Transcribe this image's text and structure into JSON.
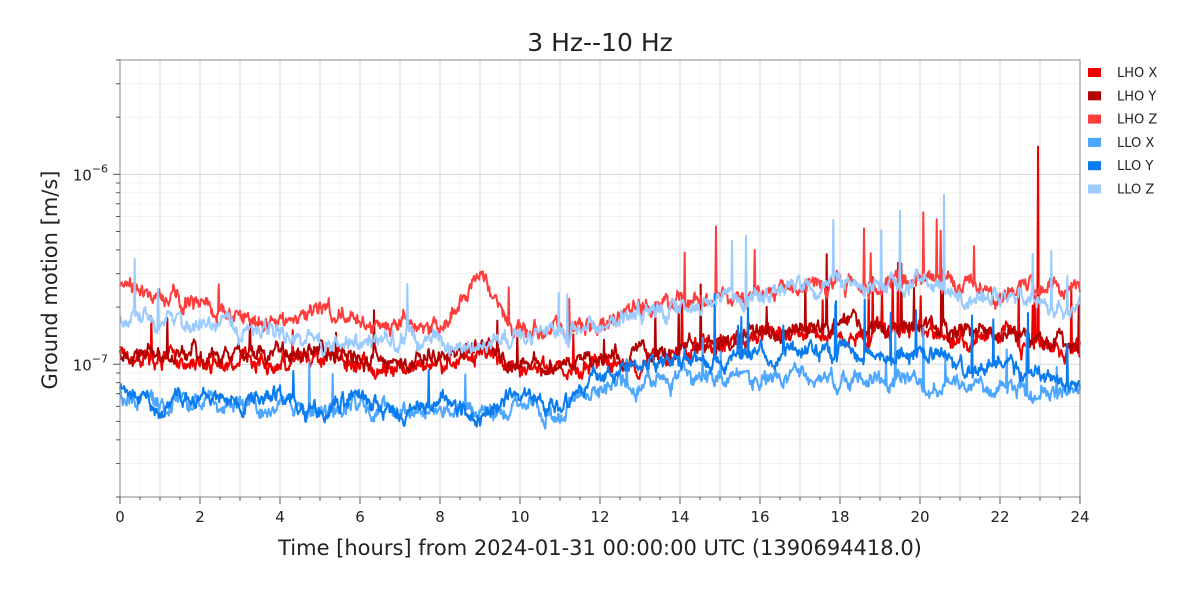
{
  "chart_data": {
    "type": "line",
    "title": "3 Hz--10 Hz",
    "xlabel": "Time [hours] from 2024-01-31 00:00:00 UTC (1390694418.0)",
    "ylabel": "Ground motion [m/s]",
    "xlim": [
      0,
      24
    ],
    "ylim": [
      2e-08,
      4e-06
    ],
    "yscale": "log",
    "grid": true,
    "legend_position": "right",
    "x_ticks": [
      "0",
      "2",
      "4",
      "6",
      "8",
      "10",
      "12",
      "14",
      "16",
      "18",
      "20",
      "22",
      "24"
    ],
    "y_ticks": [
      {
        "value": 1e-07,
        "base": "10",
        "exp": "−7"
      },
      {
        "value": 1e-06,
        "base": "10",
        "exp": "−6"
      }
    ],
    "x": [
      0,
      1,
      2,
      3,
      4,
      5,
      6,
      7,
      8,
      9,
      10,
      11,
      12,
      13,
      14,
      15,
      16,
      17,
      18,
      19,
      20,
      21,
      22,
      23,
      24
    ],
    "series": [
      {
        "name": "LHO X",
        "color": "#ee0000",
        "values": [
          1.25e-07,
          1.05e-07,
          1e-07,
          1.05e-07,
          1e-07,
          1.1e-07,
          1e-07,
          9.5e-08,
          1e-07,
          1.2e-07,
          9e-08,
          9.5e-08,
          1e-07,
          1.05e-07,
          1.2e-07,
          1.3e-07,
          1.4e-07,
          1.5e-07,
          1.5e-07,
          1.4e-07,
          1.5e-07,
          1.4e-07,
          1.4e-07,
          1.3e-07,
          1.2e-07
        ]
      },
      {
        "name": "LHO Y",
        "color": "#b30000",
        "values": [
          1.2e-07,
          1.15e-07,
          1.1e-07,
          1.15e-07,
          1.1e-07,
          1.2e-07,
          1.05e-07,
          1.05e-07,
          1.1e-07,
          1.3e-07,
          1e-07,
          1e-07,
          1.05e-07,
          1.1e-07,
          1.25e-07,
          1.35e-07,
          1.45e-07,
          1.6e-07,
          1.6e-07,
          1.5e-07,
          1.6e-07,
          1.5e-07,
          1.45e-07,
          1.35e-07,
          1.2e-07
        ]
      },
      {
        "name": "LHO Z",
        "color": "#ff3d3d",
        "values": [
          2.6e-07,
          2.3e-07,
          2.1e-07,
          1.8e-07,
          1.7e-07,
          1.9e-07,
          1.6e-07,
          1.7e-07,
          1.6e-07,
          2.8e-07,
          1.5e-07,
          1.6e-07,
          1.7e-07,
          1.9e-07,
          2.3e-07,
          2.2e-07,
          2.3e-07,
          2.6e-07,
          2.7e-07,
          2.5e-07,
          2.7e-07,
          2.6e-07,
          2.4e-07,
          2.5e-07,
          2.5e-07
        ]
      },
      {
        "name": "LLO X",
        "color": "#4da6ff",
        "values": [
          7e-08,
          6e-08,
          6.5e-08,
          6e-08,
          6e-08,
          5.5e-08,
          6e-08,
          5.5e-08,
          6e-08,
          5.5e-08,
          6e-08,
          5.5e-08,
          7.5e-08,
          8e-08,
          8.5e-08,
          9e-08,
          8.5e-08,
          8.5e-08,
          8e-08,
          8e-08,
          8e-08,
          7.5e-08,
          7.5e-08,
          7e-08,
          7e-08
        ]
      },
      {
        "name": "LLO Y",
        "color": "#0a7cf0",
        "values": [
          7.5e-08,
          6e-08,
          7e-08,
          6e-08,
          7e-08,
          5.5e-08,
          7e-08,
          5e-08,
          7e-08,
          5e-08,
          7e-08,
          6e-08,
          8.5e-08,
          1e-07,
          1e-07,
          1.05e-07,
          1.1e-07,
          1.2e-07,
          1.2e-07,
          1.1e-07,
          1.2e-07,
          1e-07,
          9.5e-08,
          9e-08,
          8e-08
        ]
      },
      {
        "name": "LLO Z",
        "color": "#9ccbff",
        "values": [
          1.8e-07,
          1.6e-07,
          1.6e-07,
          1.5e-07,
          1.4e-07,
          1.3e-07,
          1.4e-07,
          1.3e-07,
          1.3e-07,
          1.2e-07,
          1.4e-07,
          1.5e-07,
          1.7e-07,
          1.9e-07,
          2e-07,
          2.2e-07,
          2.4e-07,
          2.5e-07,
          2.6e-07,
          2.5e-07,
          2.7e-07,
          2.4e-07,
          2.3e-07,
          2.1e-07,
          2e-07
        ]
      }
    ],
    "annotations": [
      {
        "series": "LHO X",
        "x": 22.95,
        "y": 1.4e-06,
        "note": "spike"
      },
      {
        "series": "LLO Z",
        "x": 20.6,
        "y": 7.8e-07,
        "note": "peak"
      }
    ]
  }
}
